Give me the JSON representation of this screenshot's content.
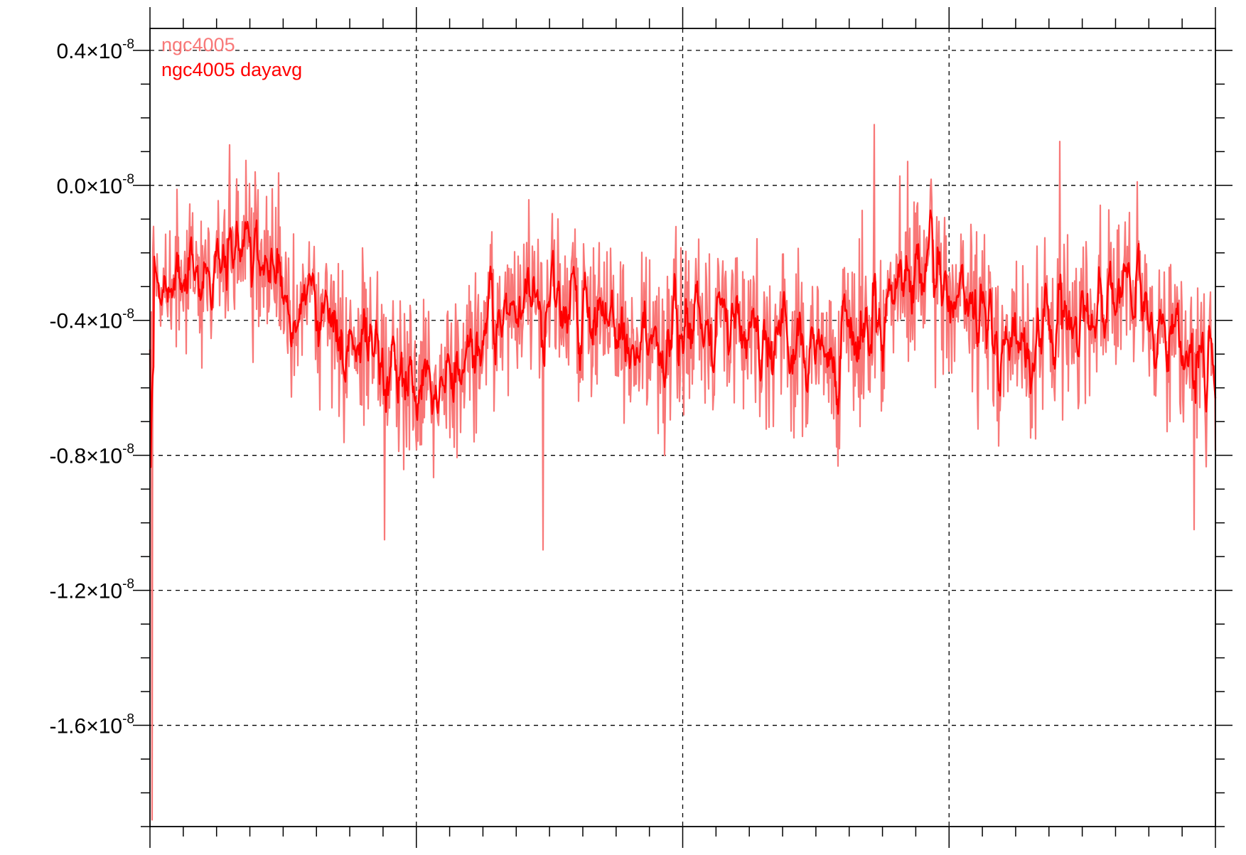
{
  "chart_data": {
    "type": "line",
    "title": "",
    "xlabel": "",
    "ylabel": "",
    "ylim": [
      -1.9e-08,
      4.65e-09
    ],
    "grid": true,
    "legend_placement": "top-left",
    "y_ticks": [
      {
        "value": 4e-09,
        "mantissa": "0.4",
        "times": "×",
        "base": "10",
        "exponent": "-8"
      },
      {
        "value": 0.0,
        "mantissa": "0.0",
        "times": "×",
        "base": "10",
        "exponent": "-8"
      },
      {
        "value": -4e-09,
        "mantissa": "-0.4",
        "times": "×",
        "base": "10",
        "exponent": "-8"
      },
      {
        "value": -8e-09,
        "mantissa": "-0.8",
        "times": "×",
        "base": "10",
        "exponent": "-8"
      },
      {
        "value": -1.2e-08,
        "mantissa": "-1.2",
        "times": "×",
        "base": "10",
        "exponent": "-8"
      },
      {
        "value": -1.6e-08,
        "mantissa": "-1.6",
        "times": "×",
        "base": "10",
        "exponent": "-8"
      }
    ],
    "x_major_ticks": 4,
    "x_minor_per_major": 8,
    "series": [
      {
        "name": "ngc4005",
        "color": "#f87878"
      },
      {
        "name": "ngc4005 dayavg",
        "color": "#ff0000"
      }
    ],
    "segments": [
      {
        "mean": -3.5e-09,
        "amp": 2.8e-09
      },
      {
        "mean": -2e-09,
        "amp": 3e-09
      },
      {
        "mean": -4.5e-09,
        "amp": 3e-09
      },
      {
        "mean": -6e-09,
        "amp": 3e-09
      },
      {
        "mean": -3e-09,
        "amp": 3e-09
      },
      {
        "mean": -4.8e-09,
        "amp": 3e-09
      },
      {
        "mean": -3.8e-09,
        "amp": 3e-09
      },
      {
        "mean": -5.2e-09,
        "amp": 3.2e-09
      },
      {
        "mean": -2.5e-09,
        "amp": 3.2e-09
      },
      {
        "mean": -5e-09,
        "amp": 3.2e-09
      },
      {
        "mean": -3e-09,
        "amp": 3.2e-09
      },
      {
        "mean": -5.5e-09,
        "amp": 3.2e-09
      }
    ],
    "extremes": [
      {
        "x": 0.002,
        "y": -1.88e-08
      },
      {
        "x": 0.075,
        "y": 1.2e-09
      },
      {
        "x": 0.22,
        "y": -1.05e-08
      },
      {
        "x": 0.369,
        "y": -1.08e-08
      },
      {
        "x": 0.68,
        "y": 1.8e-09
      },
      {
        "x": 0.854,
        "y": 1.3e-09
      },
      {
        "x": 0.98,
        "y": -1.02e-08
      }
    ]
  }
}
